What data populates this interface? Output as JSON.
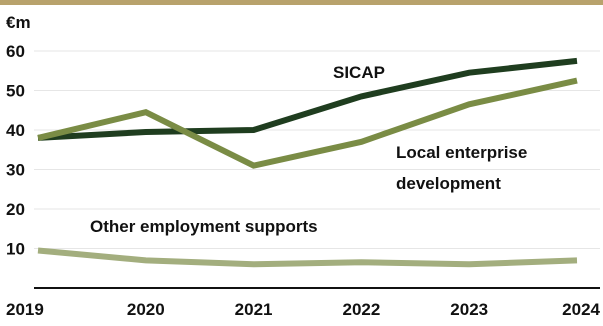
{
  "chart_data": {
    "type": "line",
    "unit_label": "€m",
    "x": [
      "2019",
      "2020",
      "2021",
      "2022",
      "2023",
      "2024"
    ],
    "ylim": [
      0,
      60
    ],
    "yticks": [
      10,
      20,
      30,
      40,
      50,
      60
    ],
    "grid": true,
    "legend": "none",
    "series": [
      {
        "name": "SICAP",
        "values": [
          38,
          39.5,
          40,
          48.5,
          54.5,
          57.5
        ],
        "color": "#1f3d1f"
      },
      {
        "name": "Local enterprise development",
        "values": [
          38,
          44.5,
          31,
          37,
          46.5,
          52.5
        ],
        "color": "#7a8c45"
      },
      {
        "name": "Other employment supports",
        "values": [
          9.5,
          7,
          6,
          6.5,
          6,
          7
        ],
        "color": "#a3ae7e"
      }
    ],
    "series_labels": [
      {
        "lines": [
          "SICAP"
        ]
      },
      {
        "lines": [
          "Local enterprise",
          "development"
        ]
      },
      {
        "lines": [
          "Other employment supports"
        ]
      }
    ]
  },
  "colors": {
    "top_rule": "#b8a26c",
    "grid": "#e6e6e6",
    "axis": "#111111"
  }
}
